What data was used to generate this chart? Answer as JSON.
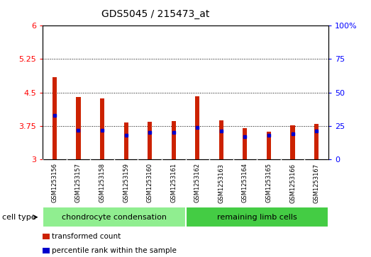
{
  "title": "GDS5045 / 215473_at",
  "samples": [
    "GSM1253156",
    "GSM1253157",
    "GSM1253158",
    "GSM1253159",
    "GSM1253160",
    "GSM1253161",
    "GSM1253162",
    "GSM1253163",
    "GSM1253164",
    "GSM1253165",
    "GSM1253166",
    "GSM1253167"
  ],
  "transformed_count": [
    4.85,
    4.4,
    4.37,
    3.82,
    3.84,
    3.86,
    4.42,
    3.87,
    3.7,
    3.62,
    3.76,
    3.8
  ],
  "percentile_rank": [
    33,
    22,
    22,
    18,
    20,
    20,
    24,
    21,
    17,
    18,
    19,
    21
  ],
  "y_min": 3,
  "y_max": 6,
  "y_ticks_left": [
    3,
    3.75,
    4.5,
    5.25,
    6
  ],
  "y_ticks_right": [
    0,
    25,
    50,
    75,
    100
  ],
  "bar_color": "#cc2200",
  "marker_color": "#0000cc",
  "bg_color": "#cccccc",
  "cell_type_groups": [
    {
      "label": "chondrocyte condensation",
      "start": 0,
      "end": 6,
      "color": "#90ee90"
    },
    {
      "label": "remaining limb cells",
      "start": 6,
      "end": 12,
      "color": "#44cc44"
    }
  ],
  "cell_type_label": "cell type",
  "legend_items": [
    {
      "label": "transformed count",
      "color": "#cc2200"
    },
    {
      "label": "percentile rank within the sample",
      "color": "#0000cc"
    }
  ],
  "bar_width": 0.18,
  "dotted_lines": [
    3.75,
    4.5,
    5.25
  ]
}
